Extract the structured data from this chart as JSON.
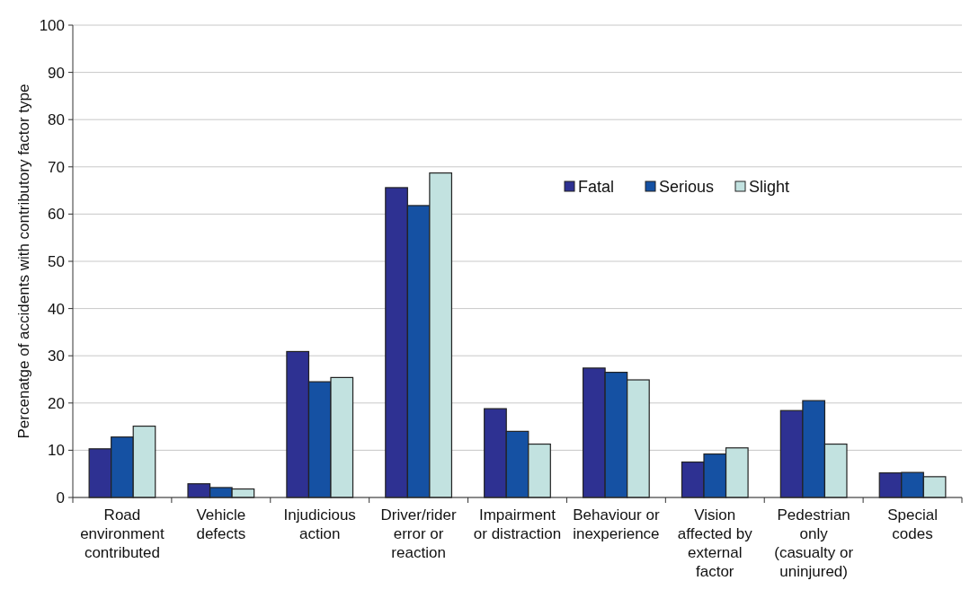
{
  "chart_data": {
    "type": "bar",
    "ylabel": "Percenatge of accidents with contributory factor type",
    "categories": [
      "Road environment contributed",
      "Vehicle defects",
      "Injudicious action",
      "Driver/rider error or reaction",
      "Impairment or distraction",
      "Behaviour or inexperience",
      "Vision affected by external factor",
      "Pedestrian only (casualty or uninjured)",
      "Special codes"
    ],
    "series": [
      {
        "name": "Fatal",
        "color": "#2e3192",
        "values": [
          10.3,
          2.9,
          30.9,
          65.6,
          18.8,
          27.4,
          7.5,
          18.4,
          5.2
        ]
      },
      {
        "name": "Serious",
        "color": "#1551a3",
        "values": [
          12.8,
          2.1,
          24.5,
          61.8,
          14.0,
          26.5,
          9.2,
          20.5,
          5.3
        ]
      },
      {
        "name": "Slight",
        "color": "#c2e2e0",
        "values": [
          15.1,
          1.8,
          25.4,
          68.7,
          11.3,
          24.9,
          10.5,
          11.3,
          4.4
        ]
      }
    ],
    "ylim": [
      0,
      100
    ],
    "yticks": [
      0,
      10,
      20,
      30,
      40,
      50,
      60,
      70,
      80,
      90,
      100
    ],
    "grid": "y",
    "legend": "top right"
  }
}
